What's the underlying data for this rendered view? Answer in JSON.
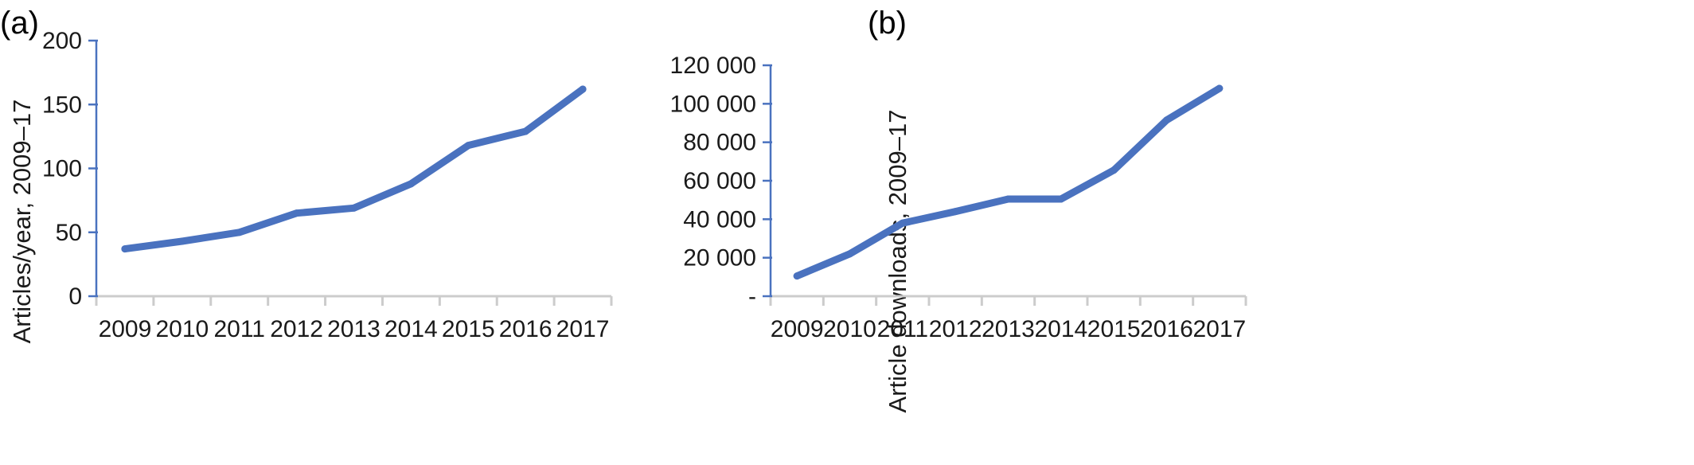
{
  "colors": {
    "series": "#4a72bf",
    "axis": "#4a72bf",
    "xaxis": "#cccccc"
  },
  "chart_data": [
    {
      "panel_label": "(a)",
      "type": "line",
      "ylabel": "Articles/year, 2009–17",
      "xlabel": "",
      "categories": [
        "2009",
        "2010",
        "2011",
        "2012",
        "2013",
        "2014",
        "2015",
        "2016",
        "2017"
      ],
      "ylim": [
        0,
        200
      ],
      "yticks": [
        0,
        50,
        100,
        150,
        200
      ],
      "ytick_labels": [
        "0",
        "50",
        "100",
        "150",
        "200"
      ],
      "values": [
        37,
        43,
        50,
        65,
        69,
        88,
        118,
        129,
        162
      ],
      "grid": false
    },
    {
      "panel_label": "(b)",
      "type": "line",
      "ylabel": "Article downloads, 2009–17",
      "xlabel": "",
      "categories": [
        "2009",
        "2010",
        "2011",
        "2012",
        "2013",
        "2014",
        "2015",
        "2016",
        "2017"
      ],
      "ylim": [
        0,
        120000
      ],
      "yticks": [
        0,
        20000,
        40000,
        60000,
        80000,
        100000,
        120000
      ],
      "ytick_labels": [
        "-",
        "20 000",
        "40 000",
        "60 000",
        "80 000",
        "100 000",
        "120 000"
      ],
      "values": [
        10500,
        22000,
        38000,
        44000,
        50500,
        50500,
        65500,
        91500,
        108000
      ],
      "grid": false
    }
  ]
}
